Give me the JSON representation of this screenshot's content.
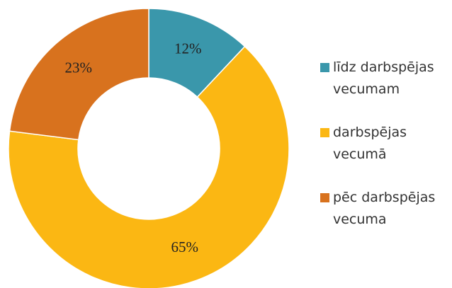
{
  "chart_data": {
    "type": "donut",
    "categories": [
      "līdz darbspējas vecumam",
      "darbspējas vecumā",
      "pēc darbspējas vecuma"
    ],
    "values": [
      12,
      65,
      23
    ],
    "value_labels": [
      "12%",
      "65%",
      "23%"
    ],
    "colors": [
      "#3a97ab",
      "#fbb713",
      "#d8721e"
    ],
    "legend": "right"
  }
}
